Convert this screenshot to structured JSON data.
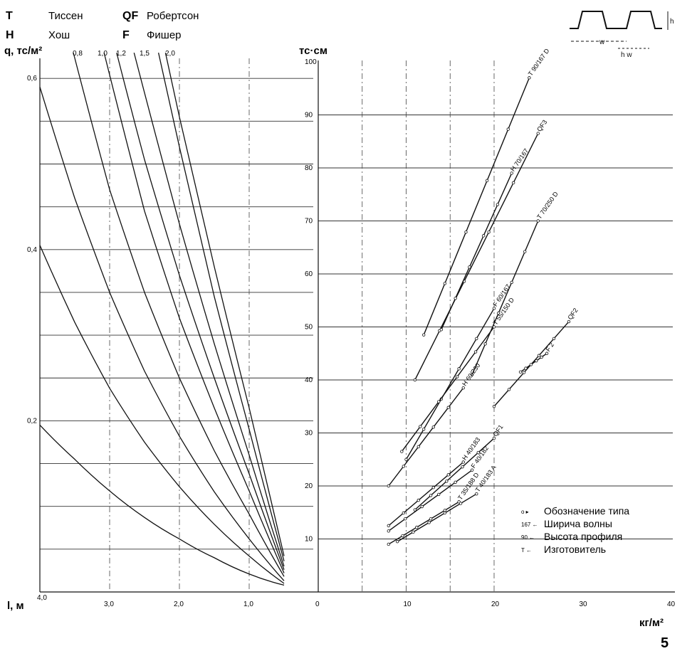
{
  "manufacturers": [
    {
      "abbr": "T",
      "name": "Тиссен"
    },
    {
      "abbr": "QF",
      "name": "Робертсон"
    },
    {
      "abbr": "H",
      "name": "Хош"
    },
    {
      "abbr": "F",
      "name": "Фишер"
    }
  ],
  "profile_sketch": {
    "w_label": "w",
    "h_label": "h",
    "hw_label": "h w"
  },
  "page_number": "5",
  "key": {
    "items": [
      {
        "code": "o ▸",
        "label": "Обозначение типа"
      },
      {
        "code": "167 ←",
        "label": "Ширича волны"
      },
      {
        "code": "90 ←",
        "label": "Высота профиля"
      },
      {
        "code": "T ←",
        "label": "Изготовитель"
      }
    ]
  },
  "chart_data": [
    {
      "type": "line",
      "ylabel": "q, тс/м²",
      "xlabel": "l, м",
      "x_ticks": [
        "4,0",
        "3,0",
        "2,0",
        "1,0"
      ],
      "y_ticks": [
        "0,6",
        "0,4",
        "0,2"
      ],
      "xlim": [
        4.0,
        0.0
      ],
      "ylim": [
        0.0,
        0.63
      ],
      "x_reversed": true,
      "grid": true,
      "curve_labels": [
        "0,8",
        "1,0",
        "1,2",
        "1,5",
        "2,0"
      ],
      "series": [
        {
          "x": [
            4.0,
            3.5,
            3.0,
            2.5,
            2.0,
            1.5,
            1.0,
            0.5
          ],
          "y": [
            0.195,
            0.155,
            0.118,
            0.087,
            0.062,
            0.04,
            0.021,
            0.008
          ]
        },
        {
          "x": [
            4.0,
            3.5,
            3.0,
            2.5,
            2.0,
            1.5,
            1.0,
            0.5
          ],
          "y": [
            0.405,
            0.315,
            0.238,
            0.175,
            0.123,
            0.079,
            0.042,
            0.01
          ]
        },
        {
          "x": [
            4.0,
            3.5,
            3.0,
            2.5,
            2.0,
            1.5,
            1.0,
            0.5
          ],
          "y": [
            0.59,
            0.46,
            0.35,
            0.258,
            0.182,
            0.117,
            0.062,
            0.013
          ]
        },
        {
          "x": [
            3.52,
            3.0,
            2.5,
            2.0,
            1.5,
            1.0,
            0.5
          ],
          "y": [
            0.63,
            0.47,
            0.35,
            0.25,
            0.165,
            0.091,
            0.018
          ]
        },
        {
          "x": [
            3.08,
            2.5,
            2.0,
            1.5,
            1.0,
            0.5
          ],
          "y": [
            0.63,
            0.445,
            0.32,
            0.215,
            0.118,
            0.022
          ]
        },
        {
          "x": [
            2.9,
            2.5,
            2.0,
            1.5,
            1.0,
            0.5
          ],
          "y": [
            0.63,
            0.505,
            0.37,
            0.25,
            0.138,
            0.026
          ]
        },
        {
          "x": [
            2.65,
            2.0,
            1.5,
            1.0,
            0.5
          ],
          "y": [
            0.63,
            0.43,
            0.29,
            0.16,
            0.03
          ]
        },
        {
          "x": [
            2.3,
            2.0,
            1.5,
            1.0,
            0.5
          ],
          "y": [
            0.63,
            0.52,
            0.345,
            0.19,
            0.036
          ]
        },
        {
          "x": [
            2.2,
            2.0,
            1.5,
            1.0,
            0.5
          ],
          "y": [
            0.63,
            0.555,
            0.38,
            0.215,
            0.042
          ]
        }
      ]
    },
    {
      "type": "line",
      "ylabel": "тс·см",
      "xlabel": "кг/м²",
      "x_ticks": [
        "0",
        "10",
        "20",
        "30",
        "40"
      ],
      "y_ticks": [
        "10",
        "20",
        "30",
        "40",
        "50",
        "60",
        "70",
        "80",
        "90",
        "100"
      ],
      "xlim": [
        0,
        40
      ],
      "ylim": [
        0,
        100
      ],
      "grid": true,
      "series": [
        {
          "name": "T 90/167 D",
          "x": [
            12,
            24
          ],
          "y": [
            48.5,
            97
          ]
        },
        {
          "name": "QF3",
          "x": [
            11,
            25
          ],
          "y": [
            40,
            86.5
          ]
        },
        {
          "name": "H 70/167",
          "x": [
            14,
            22
          ],
          "y": [
            49.5,
            79
          ]
        },
        {
          "name": "T 70/250 D",
          "x": [
            17.5,
            25
          ],
          "y": [
            41,
            70
          ]
        },
        {
          "name": "F 60/167",
          "x": [
            10,
            20
          ],
          "y": [
            25,
            53.5
          ]
        },
        {
          "name": "T 55/150 D",
          "x": [
            9.5,
            20
          ],
          "y": [
            26.5,
            50
          ]
        },
        {
          "name": "H 60/230",
          "x": [
            8,
            16.5
          ],
          "y": [
            20,
            38.5
          ]
        },
        {
          "name": "QF2",
          "x": [
            20,
            28.5
          ],
          "y": [
            35,
            51
          ]
        },
        {
          "name": "F 2",
          "x": [
            23,
            26
          ],
          "y": [
            41.5,
            45
          ]
        },
        {
          "name": "H 40/183",
          "x": [
            8,
            16.5
          ],
          "y": [
            12.5,
            24.5
          ]
        },
        {
          "name": "QF1",
          "x": [
            11,
            20
          ],
          "y": [
            15.5,
            29
          ]
        },
        {
          "name": "F 40/182",
          "x": [
            8,
            17.5
          ],
          "y": [
            11.5,
            23
          ]
        },
        {
          "name": "T 35/188 D",
          "x": [
            8,
            16
          ],
          "y": [
            9,
            17
          ]
        },
        {
          "name": "T 40/183 A",
          "x": [
            9,
            18
          ],
          "y": [
            9.5,
            18.5
          ]
        }
      ]
    }
  ]
}
